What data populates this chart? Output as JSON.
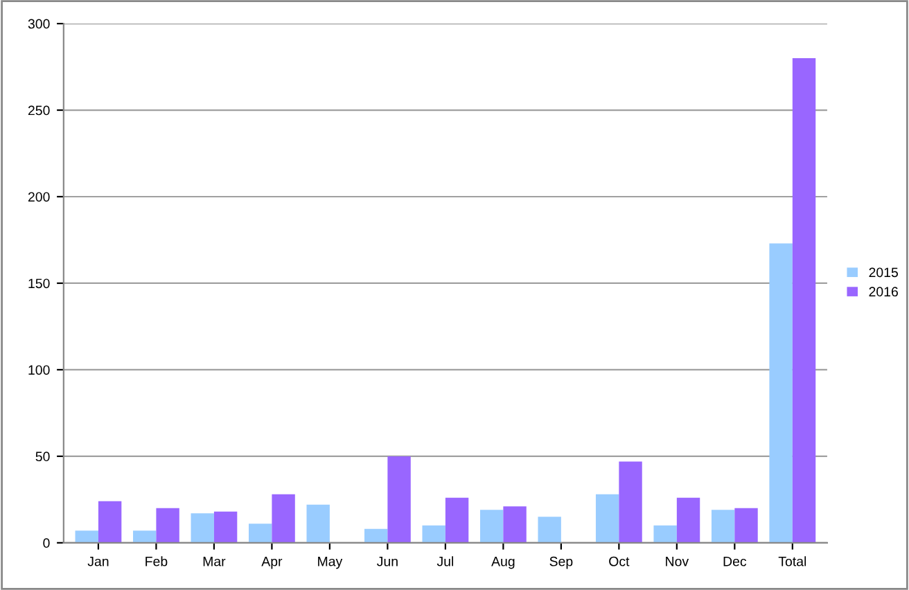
{
  "chart_data": {
    "type": "bar",
    "categories": [
      "Jan",
      "Feb",
      "Mar",
      "Apr",
      "May",
      "Jun",
      "Jul",
      "Aug",
      "Sep",
      "Oct",
      "Nov",
      "Dec",
      "Total"
    ],
    "series": [
      {
        "name": "2015",
        "color": "#99ccff",
        "values": [
          7,
          7,
          17,
          11,
          22,
          8,
          10,
          19,
          15,
          28,
          10,
          19,
          173
        ]
      },
      {
        "name": "2016",
        "color": "#9966ff",
        "values": [
          24,
          20,
          18,
          28,
          0,
          50,
          26,
          21,
          0,
          47,
          26,
          20,
          280
        ]
      }
    ],
    "ylim": [
      0,
      300
    ],
    "yticks": [
      0,
      50,
      100,
      150,
      200,
      250,
      300
    ],
    "grid": "y",
    "legend": "right"
  }
}
